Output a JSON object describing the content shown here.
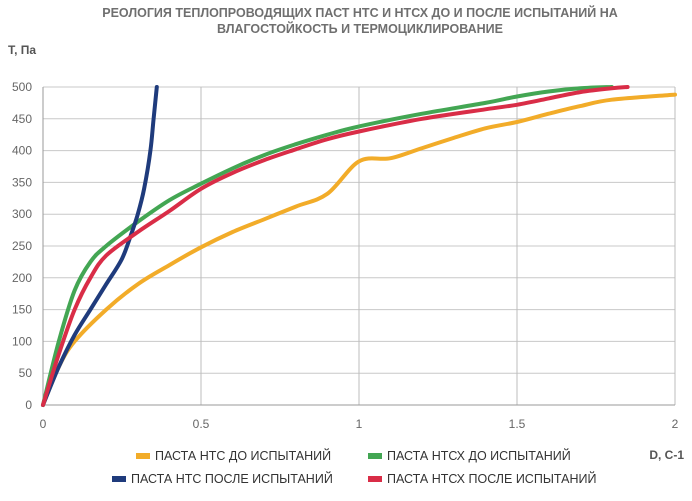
{
  "chart_data": {
    "type": "line",
    "title": "РЕОЛОГИЯ ТЕПЛОПРОВОДЯЩИХ ПАСТ НТС И НТСХ ДО И ПОСЛЕ ИСПЫТАНИЙ НА ВЛАГОСТОЙКОСТЬ И ТЕРМОЦИКЛИРОВАНИЕ",
    "title_lines": [
      "РЕОЛОГИЯ ТЕПЛОПРОВОДЯЩИХ ПАСТ НТС И НТСХ ДО И ПОСЛЕ ИСПЫТАНИЙ НА",
      "ВЛАГОСТОЙКОСТЬ И ТЕРМОЦИКЛИРОВАНИЕ"
    ],
    "xlabel": "D, С-1",
    "ylabel": "Т, Па",
    "xlim": [
      0,
      2
    ],
    "ylim": [
      0,
      500
    ],
    "xticks": [
      0,
      0.5,
      1,
      1.5,
      2
    ],
    "xtick_labels": [
      "0",
      "0.5",
      "1",
      "1.5",
      "2"
    ],
    "yticks": [
      0,
      50,
      100,
      150,
      200,
      250,
      300,
      350,
      400,
      450,
      500
    ],
    "ytick_labels": [
      "0",
      "50",
      "100",
      "150",
      "200",
      "250",
      "300",
      "350",
      "400",
      "450",
      "500"
    ],
    "grid": true,
    "legend_position": "bottom",
    "series": [
      {
        "name": "ПАСТА НТС ДО ИСПЫТАНИЙ",
        "color": "#f2ac29",
        "points": [
          [
            0,
            0
          ],
          [
            0.05,
            60
          ],
          [
            0.1,
            100
          ],
          [
            0.2,
            150
          ],
          [
            0.3,
            190
          ],
          [
            0.4,
            220
          ],
          [
            0.5,
            248
          ],
          [
            0.6,
            272
          ],
          [
            0.7,
            292
          ],
          [
            0.8,
            312
          ],
          [
            0.9,
            332
          ],
          [
            1.0,
            383
          ],
          [
            1.1,
            388
          ],
          [
            1.2,
            404
          ],
          [
            1.3,
            420
          ],
          [
            1.4,
            435
          ],
          [
            1.5,
            445
          ],
          [
            1.6,
            458
          ],
          [
            1.7,
            470
          ],
          [
            1.8,
            480
          ],
          [
            2.0,
            488
          ]
        ]
      },
      {
        "name": "ПАСТА НТСХ ДО ИСПЫТАНИЙ",
        "color": "#43a653",
        "points": [
          [
            0,
            0
          ],
          [
            0.05,
            100
          ],
          [
            0.1,
            180
          ],
          [
            0.15,
            225
          ],
          [
            0.2,
            250
          ],
          [
            0.3,
            288
          ],
          [
            0.4,
            322
          ],
          [
            0.5,
            348
          ],
          [
            0.6,
            372
          ],
          [
            0.7,
            393
          ],
          [
            0.8,
            410
          ],
          [
            0.9,
            425
          ],
          [
            1.0,
            438
          ],
          [
            1.2,
            458
          ],
          [
            1.4,
            475
          ],
          [
            1.5,
            485
          ],
          [
            1.6,
            493
          ],
          [
            1.7,
            498
          ],
          [
            1.8,
            500
          ]
        ]
      },
      {
        "name": "ПАСТА НТС ПОСЛЕ ИСПЫТАНИЙ",
        "color": "#1f3b7c",
        "points": [
          [
            0,
            0
          ],
          [
            0.05,
            60
          ],
          [
            0.1,
            110
          ],
          [
            0.15,
            150
          ],
          [
            0.2,
            190
          ],
          [
            0.25,
            230
          ],
          [
            0.28,
            270
          ],
          [
            0.3,
            300
          ],
          [
            0.32,
            340
          ],
          [
            0.34,
            400
          ],
          [
            0.35,
            450
          ],
          [
            0.36,
            500
          ]
        ]
      },
      {
        "name": "ПАСТА НТСХ ПОСЛЕ ИСПЫТАНИЙ",
        "color": "#d92d47",
        "points": [
          [
            0,
            0
          ],
          [
            0.05,
            80
          ],
          [
            0.1,
            150
          ],
          [
            0.15,
            200
          ],
          [
            0.2,
            235
          ],
          [
            0.3,
            272
          ],
          [
            0.4,
            305
          ],
          [
            0.5,
            340
          ],
          [
            0.6,
            365
          ],
          [
            0.7,
            385
          ],
          [
            0.8,
            402
          ],
          [
            0.9,
            418
          ],
          [
            1.0,
            430
          ],
          [
            1.2,
            450
          ],
          [
            1.4,
            465
          ],
          [
            1.5,
            472
          ],
          [
            1.6,
            482
          ],
          [
            1.7,
            492
          ],
          [
            1.8,
            498
          ],
          [
            1.85,
            500
          ]
        ]
      }
    ]
  }
}
